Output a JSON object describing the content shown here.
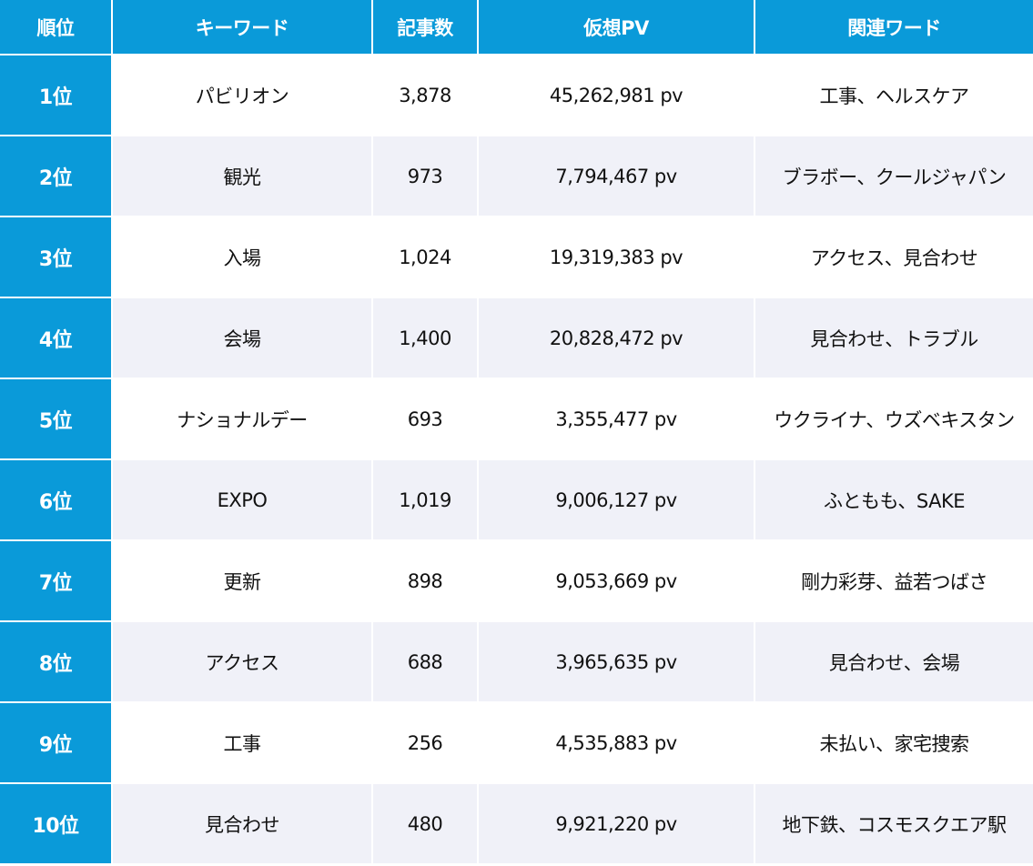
{
  "colors": {
    "header_bg": "#0a9ad9",
    "header_text": "#ffffff",
    "row_alt_bg": "#f0f1f8",
    "row_bg": "#ffffff"
  },
  "table": {
    "headers": [
      "順位",
      "キーワード",
      "記事数",
      "仮想PV",
      "関連ワード"
    ],
    "rows": [
      {
        "rank": "1位",
        "keyword": "パビリオン",
        "articles": "3,878",
        "pv": "45,262,981 pv",
        "related": "工事、ヘルスケア"
      },
      {
        "rank": "2位",
        "keyword": "観光",
        "articles": "973",
        "pv": "7,794,467 pv",
        "related": "ブラボー、クールジャパン"
      },
      {
        "rank": "3位",
        "keyword": "入場",
        "articles": "1,024",
        "pv": "19,319,383 pv",
        "related": "アクセス、見合わせ"
      },
      {
        "rank": "4位",
        "keyword": "会場",
        "articles": "1,400",
        "pv": "20,828,472 pv",
        "related": "見合わせ、トラブル"
      },
      {
        "rank": "5位",
        "keyword": "ナショナルデー",
        "articles": "693",
        "pv": "3,355,477 pv",
        "related": "ウクライナ、ウズベキスタン"
      },
      {
        "rank": "6位",
        "keyword": "EXPO",
        "articles": "1,019",
        "pv": "9,006,127 pv",
        "related": "ふともも、SAKE"
      },
      {
        "rank": "7位",
        "keyword": "更新",
        "articles": "898",
        "pv": "9,053,669 pv",
        "related": "剛力彩芽、益若つばさ"
      },
      {
        "rank": "8位",
        "keyword": "アクセス",
        "articles": "688",
        "pv": "3,965,635 pv",
        "related": "見合わせ、会場"
      },
      {
        "rank": "9位",
        "keyword": "工事",
        "articles": "256",
        "pv": "4,535,883 pv",
        "related": "未払い、家宅捜索"
      },
      {
        "rank": "10位",
        "keyword": "見合わせ",
        "articles": "480",
        "pv": "9,921,220 pv",
        "related": "地下鉄、コスモスクエア駅"
      }
    ]
  }
}
